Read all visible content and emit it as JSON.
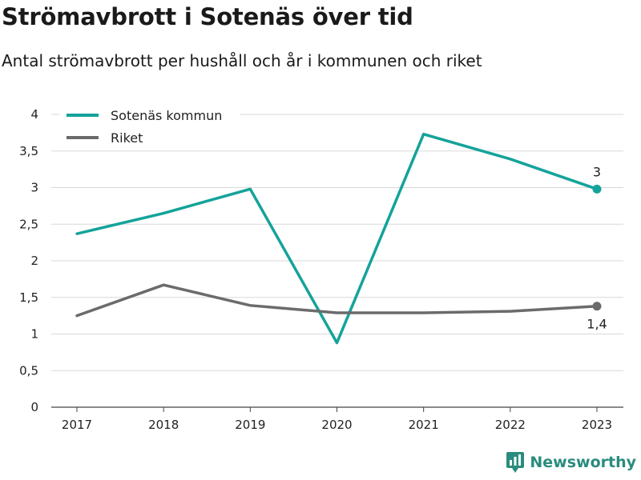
{
  "title": "Strömavbrott i Sotenäs över tid",
  "subtitle": "Antal strömavbrott per hushåll och år i kommunen och riket",
  "brand": "Newsworthy",
  "colors": {
    "teal": "#14a39a",
    "gray": "#6b6b6d",
    "grid": "#d9d9d9"
  },
  "chart_data": {
    "type": "line",
    "x": [
      "2017",
      "2018",
      "2019",
      "2020",
      "2021",
      "2022",
      "2023"
    ],
    "ylim": [
      0,
      4
    ],
    "yticks": [
      0,
      0.5,
      1,
      1.5,
      2,
      2.5,
      3,
      3.5,
      4
    ],
    "ytick_labels": [
      "0",
      "0,5",
      "1",
      "1,5",
      "2",
      "2,5",
      "3",
      "3,5",
      "4"
    ],
    "grid": true,
    "legend_position": "top-left",
    "series": [
      {
        "name": "Sotenäs kommun",
        "color": "#14a39a",
        "values": [
          2.37,
          2.65,
          2.98,
          0.88,
          3.73,
          3.39,
          2.98
        ],
        "end_label": "3"
      },
      {
        "name": "Riket",
        "color": "#6b6b6d",
        "values": [
          1.25,
          1.67,
          1.39,
          1.29,
          1.29,
          1.31,
          1.38
        ],
        "end_label": "1,4"
      }
    ]
  }
}
